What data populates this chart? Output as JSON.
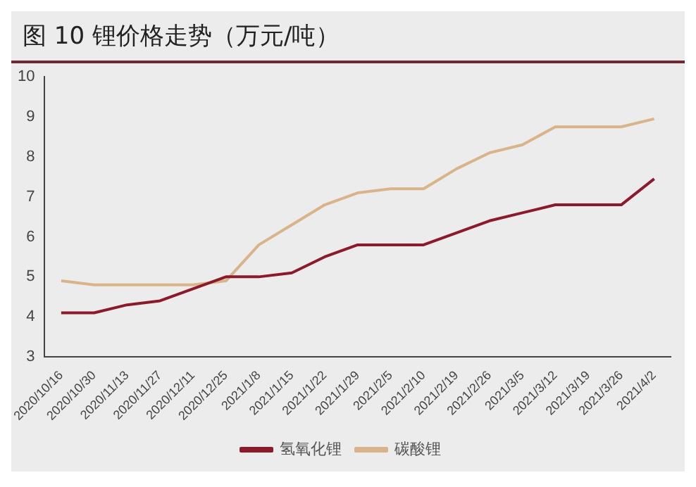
{
  "chart_data": {
    "type": "line",
    "title": "图 10 锂价格走势（万元/吨）",
    "categories": [
      "2020/10/16",
      "2020/10/30",
      "2020/11/13",
      "2020/11/27",
      "2020/12/11",
      "2020/12/25",
      "2021/1/8",
      "2021/1/15",
      "2021/1/22",
      "2021/1/29",
      "2021/2/5",
      "2021/2/10",
      "2021/2/19",
      "2021/2/26",
      "2021/3/5",
      "2021/3/12",
      "2021/3/19",
      "2021/3/26",
      "2021/4/2"
    ],
    "series": [
      {
        "name": "氢氧化锂",
        "color": "#8b1a2b",
        "values": [
          4.1,
          4.1,
          4.3,
          4.4,
          4.7,
          5.0,
          5.0,
          5.1,
          5.5,
          5.8,
          5.8,
          5.8,
          6.1,
          6.4,
          6.6,
          6.8,
          6.8,
          6.8,
          7.45
        ]
      },
      {
        "name": "碳酸锂",
        "color": "#d9b48a",
        "values": [
          4.9,
          4.8,
          4.8,
          4.8,
          4.8,
          4.9,
          5.8,
          6.3,
          6.8,
          7.1,
          7.2,
          7.2,
          7.7,
          8.1,
          8.3,
          8.75,
          8.75,
          8.75,
          8.95
        ]
      }
    ],
    "ylim": [
      3,
      10
    ],
    "yticks": [
      3,
      4,
      5,
      6,
      7,
      8,
      9,
      10
    ],
    "grid": false,
    "legend": "bottom",
    "marker": "none",
    "line_style": "solid"
  }
}
